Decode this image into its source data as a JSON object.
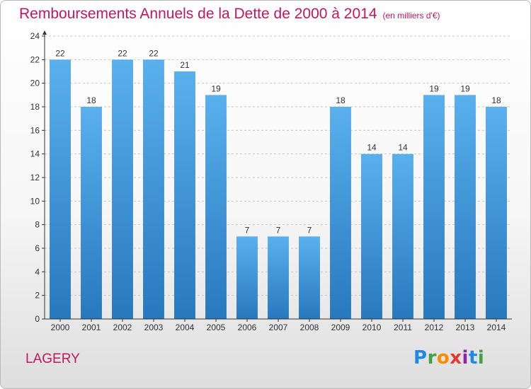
{
  "header": {
    "title": "Remboursements Annuels de la Dette de 2000 à 2014",
    "subtitle": "(en milliers d'€)"
  },
  "footer": {
    "commune": "LAGERY",
    "brand": {
      "text": "Proxiti",
      "letters": [
        {
          "char": "P",
          "color": "#1e88e5"
        },
        {
          "char": "r",
          "color": "#43a047"
        },
        {
          "char": "o",
          "color": "#fb8c00"
        },
        {
          "char": "x",
          "color": "#e53935"
        },
        {
          "char": "i",
          "color": "#8e24aa"
        },
        {
          "char": "t",
          "color": "#1e88e5"
        },
        {
          "char": "i",
          "color": "#43a047"
        }
      ]
    }
  },
  "colors": {
    "title": "#c2185b",
    "bar_light": "#5ab0ec",
    "bar_dark": "#2878be",
    "axis": "#333333",
    "grid": "#c8c8c8"
  },
  "chart_data": {
    "type": "bar",
    "title": "Remboursements Annuels de la Dette de 2000 à 2014",
    "subtitle": "(en milliers d'€)",
    "categories": [
      "2000",
      "2001",
      "2002",
      "2003",
      "2004",
      "2005",
      "2006",
      "2007",
      "2008",
      "2009",
      "2010",
      "2011",
      "2012",
      "2013",
      "2014"
    ],
    "values": [
      22,
      18,
      22,
      22,
      21,
      19,
      7,
      7,
      7,
      18,
      14,
      14,
      19,
      19,
      18
    ],
    "ylim": [
      0,
      24
    ],
    "yticks": [
      0,
      2,
      4,
      6,
      8,
      10,
      12,
      14,
      16,
      18,
      20,
      22,
      24
    ],
    "grid": "horizontal dashed",
    "legend": "none"
  }
}
